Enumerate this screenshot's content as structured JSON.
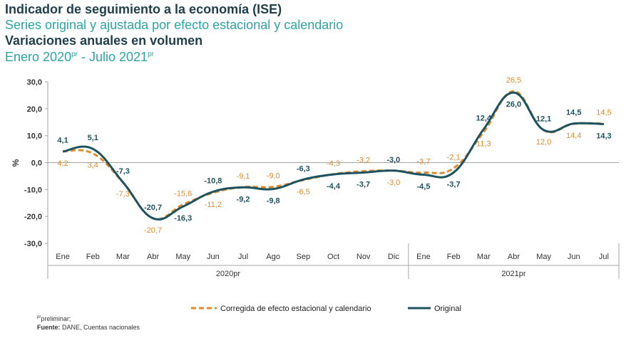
{
  "header": {
    "title": "Indicador de seguimiento a la economía (ISE)",
    "subtitle": "Series original y ajustada por efecto estacional y calendario",
    "subtitle2": "Variaciones anuales en volumen",
    "period_a": "Enero 2020",
    "period_a_sup": "pr",
    "period_sep": " - ",
    "period_b": "Julio 2021",
    "period_b_sup": "pr"
  },
  "footer": {
    "note_sup": "pr",
    "note": "preliminar;",
    "source_label": "Fuente:",
    "source_text": " DANE, Cuentas nacionales"
  },
  "colors": {
    "original": "#1d5360",
    "adjusted": "#e08a2c",
    "axis": "#a6a6a6"
  },
  "chart_data": {
    "type": "line",
    "categories": [
      "Ene",
      "Feb",
      "Mar",
      "Abr",
      "May",
      "Jun",
      "Jul",
      "Ago",
      "Sep",
      "Oct",
      "Nov",
      "Dic",
      "Ene",
      "Feb",
      "Mar",
      "Abr",
      "May",
      "Jun",
      "Jul"
    ],
    "year_groups": [
      {
        "label": "2020pr",
        "start": 0,
        "end": 11
      },
      {
        "label": "2021pr",
        "start": 12,
        "end": 18
      }
    ],
    "series": [
      {
        "name": "Corregida de efecto estacional y calendario",
        "style": "dashed",
        "values": [
          4.2,
          3.4,
          -7.3,
          -20.7,
          -15.6,
          -11.2,
          -9.1,
          -9.0,
          -6.5,
          -4.3,
          -3.2,
          -3.0,
          -3.7,
          -2.1,
          11.3,
          26.5,
          12.0,
          14.4,
          14.5
        ],
        "labels": [
          "4,2",
          "3,4",
          "-7,3",
          "-20,7",
          "-15,6",
          "-11,2",
          "-9,1",
          "-9,0",
          "-6,5",
          "-4,3",
          "-3,2",
          "-3,0",
          "-3,7",
          "-2,1",
          "11,3",
          "26,5",
          "12,0",
          "14,4",
          "14,5"
        ]
      },
      {
        "name": "Original",
        "style": "solid",
        "values": [
          4.1,
          5.1,
          -7.3,
          -20.7,
          -16.3,
          -10.8,
          -9.2,
          -9.8,
          -6.3,
          -4.4,
          -3.7,
          -3.0,
          -4.5,
          -3.7,
          12.4,
          26.0,
          12.1,
          14.5,
          14.3
        ],
        "labels": [
          "4,1",
          "5,1",
          "-7,3",
          "-20,7",
          "-16,3",
          "-10,8",
          "-9,2",
          "-9,8",
          "-6,3",
          "-4,4",
          "-3,7",
          "-3,0",
          "-4,5",
          "-3,7",
          "12,4",
          "26,0",
          "12,1",
          "14,5",
          "14,3"
        ]
      }
    ],
    "ylabel": "%",
    "ylim": [
      -30,
      30
    ],
    "yticks": [
      "-30,0",
      "-20,0",
      "-10,0",
      "0,0",
      "10,0",
      "20,0",
      "30,0"
    ],
    "ytick_values": [
      -30,
      -20,
      -10,
      0,
      10,
      20,
      30
    ],
    "grid": false,
    "legend": "bottom-center"
  }
}
